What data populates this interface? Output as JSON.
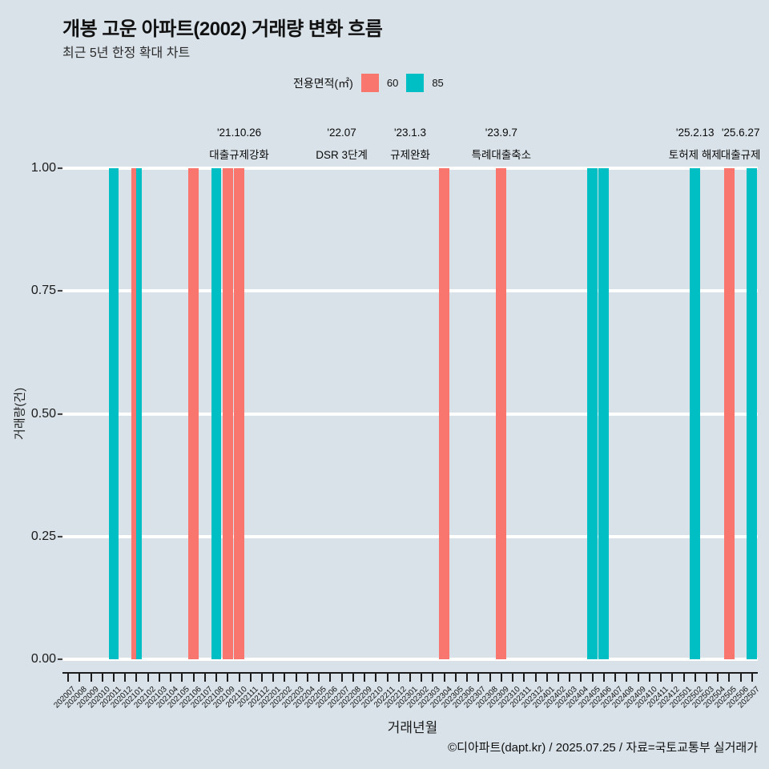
{
  "page": {
    "title": "개봉 고운 아파트(2002) 거래량 변화 흐름",
    "subtitle": "최근 5년 한정 확대 차트",
    "footer": "©디아파트(dapt.kr) / 2025.07.25 / 자료=국토교통부 실거래가"
  },
  "legend": {
    "label": "전용면적(㎡)",
    "items": [
      {
        "name": "60",
        "color": "#F8766D"
      },
      {
        "name": "85",
        "color": "#00BFC4"
      }
    ]
  },
  "chart_data": {
    "type": "bar",
    "title": "개봉 고운 아파트(2002) 거래량 변화 흐름",
    "subtitle": "최근 5년 한정 확대 차트",
    "xlabel": "거래년월",
    "ylabel": "거래량(건)",
    "ylim": [
      0,
      1
    ],
    "ytick_labels": [
      "1.00",
      "0.75",
      "0.50",
      "0.25",
      "0.00"
    ],
    "grid": true,
    "background": "#d8e2e8",
    "gridline_color": "#ffffff",
    "vline_color": "#e02020",
    "categories": [
      "202007",
      "202008",
      "202009",
      "202010",
      "202011",
      "202012",
      "202101",
      "202102",
      "202103",
      "202104",
      "202105",
      "202106",
      "202107",
      "202108",
      "202109",
      "202110",
      "202111",
      "202112",
      "202201",
      "202202",
      "202203",
      "202204",
      "202205",
      "202206",
      "202207",
      "202208",
      "202209",
      "202210",
      "202211",
      "202212",
      "202301",
      "202302",
      "202303",
      "202304",
      "202305",
      "202306",
      "202307",
      "202308",
      "202309",
      "202310",
      "202311",
      "202312",
      "202401",
      "202402",
      "202403",
      "202404",
      "202405",
      "202406",
      "202407",
      "202408",
      "202409",
      "202410",
      "202411",
      "202412",
      "202501",
      "202502",
      "202503",
      "202504",
      "202505",
      "202506",
      "202507"
    ],
    "series": [
      {
        "name": "60",
        "color": "#F8766D",
        "values": [
          0,
          0,
          0,
          0,
          0,
          0,
          1,
          0,
          0,
          0,
          0,
          1,
          0,
          0,
          1,
          1,
          0,
          0,
          0,
          0,
          0,
          0,
          0,
          0,
          0,
          0,
          0,
          0,
          0,
          0,
          0,
          0,
          0,
          1,
          0,
          0,
          0,
          0,
          1,
          0,
          0,
          0,
          0,
          0,
          0,
          0,
          0,
          0,
          0,
          0,
          0,
          0,
          0,
          0,
          0,
          0,
          0,
          0,
          1,
          0,
          0
        ]
      },
      {
        "name": "85",
        "color": "#00BFC4",
        "values": [
          0,
          0,
          0,
          0,
          1,
          0,
          1,
          0,
          0,
          0,
          0,
          0,
          0,
          1,
          0,
          0,
          0,
          0,
          0,
          0,
          0,
          0,
          0,
          0,
          0,
          0,
          0,
          0,
          0,
          0,
          0,
          0,
          0,
          0,
          0,
          0,
          0,
          0,
          0,
          0,
          0,
          0,
          0,
          0,
          0,
          0,
          1,
          1,
          0,
          0,
          0,
          0,
          0,
          0,
          0,
          1,
          0,
          0,
          0,
          0,
          1
        ]
      }
    ],
    "annotations": [
      {
        "x": "202110",
        "date": "'21.10.26",
        "label": "대출규제강화"
      },
      {
        "x": "202207",
        "date": "'22.07",
        "label": "DSR 3단계"
      },
      {
        "x": "202301",
        "date": "'23.1.3",
        "label": "규제완화"
      },
      {
        "x": "202309",
        "date": "'23.9.7",
        "label": "특례대출축소"
      },
      {
        "x": "202502",
        "date": "'25.2.13",
        "label": "토허제 해제"
      },
      {
        "x": "202506",
        "date": "'25.6.27",
        "label": "대출규제"
      }
    ]
  }
}
